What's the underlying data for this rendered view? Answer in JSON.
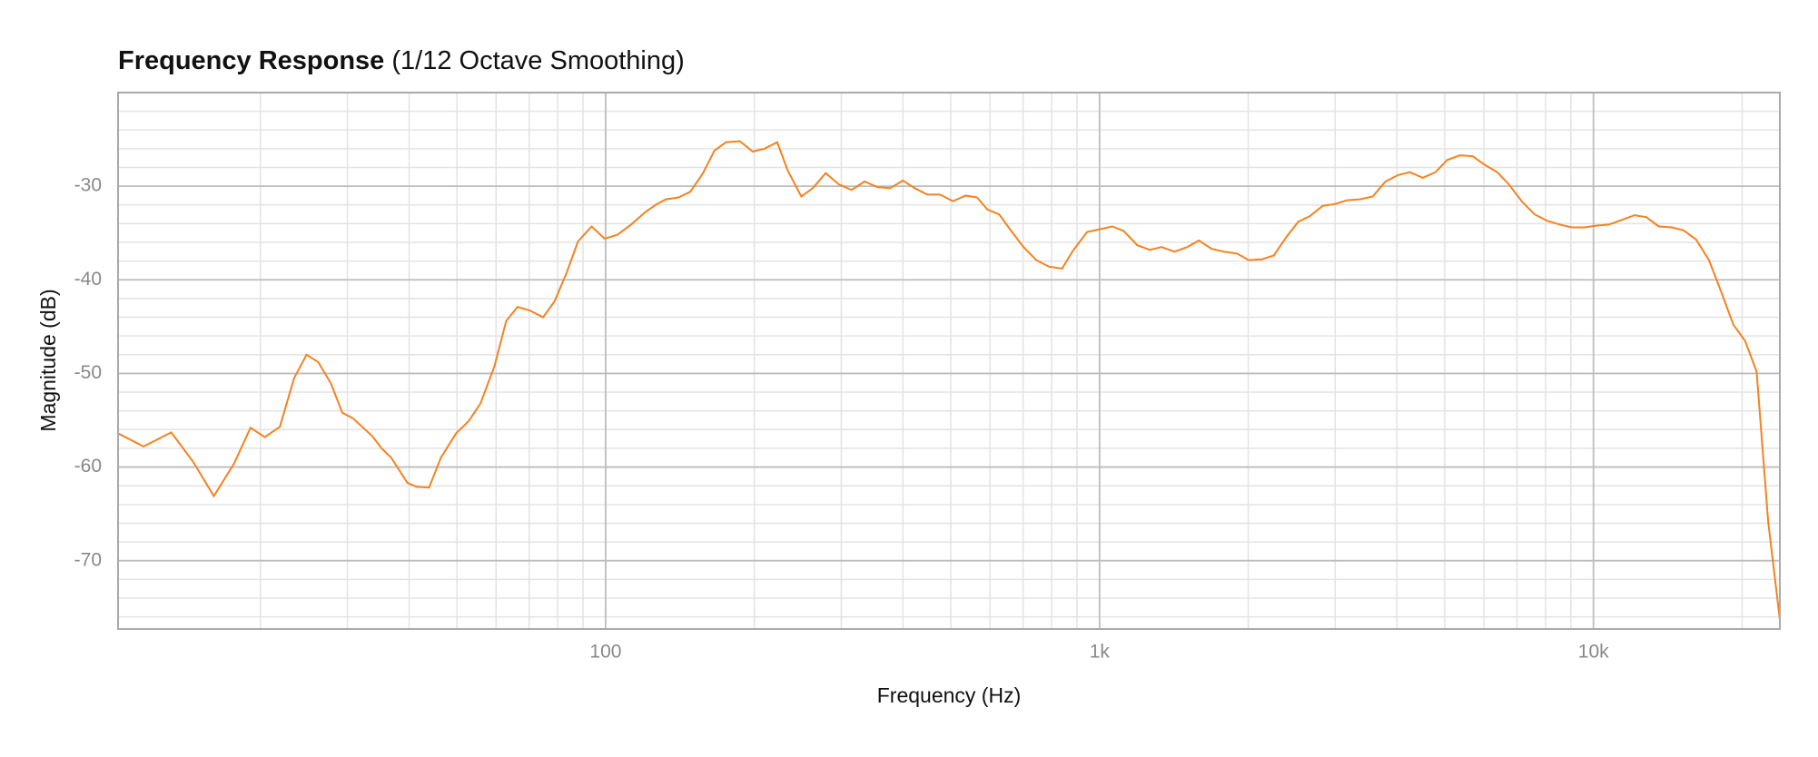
{
  "chart_data": {
    "type": "line",
    "title": "Frequency Response",
    "subtitle": "(1/12 Octave Smoothing)",
    "x_label": "Frequency (Hz)",
    "y_label": "Magnitude (dB)",
    "x_scale": "log",
    "grid": true,
    "xlim": [
      10.3,
      23845
    ],
    "ylim": [
      -77.3,
      -20
    ],
    "xticks": [
      100,
      {
        "value": 1000,
        "label": "1k"
      },
      {
        "value": 10000,
        "label": "10k"
      }
    ],
    "minor_xticks": [
      20,
      30,
      40,
      50,
      60,
      70,
      80,
      90,
      200,
      300,
      400,
      500,
      600,
      700,
      800,
      900,
      2000,
      3000,
      4000,
      5000,
      6000,
      7000,
      8000,
      9000,
      20000
    ],
    "yticks": [
      -30,
      -40,
      -50,
      -60,
      -70
    ],
    "minor_yticks": [
      -22,
      -24,
      -26,
      -28,
      -32,
      -34,
      -36,
      -38,
      -42,
      -44,
      -46,
      -48,
      -52,
      -54,
      -56,
      -58,
      -62,
      -64,
      -66,
      -68,
      -72,
      -74,
      -76
    ],
    "x": [
      10.3,
      11.6,
      13.2,
      14.6,
      16.1,
      17.7,
      19.1,
      20.4,
      21.9,
      23.4,
      24.8,
      26.2,
      27.8,
      29.3,
      30.8,
      33.7,
      35.2,
      36.8,
      39.7,
      41.4,
      43.9,
      46.4,
      49.8,
      52.8,
      55.8,
      59.5,
      62.9,
      66.3,
      70.4,
      74.7,
      78.8,
      83.3,
      87.9,
      93.7,
      99.5,
      105.6,
      112.6,
      120.1,
      126.2,
      132.4,
      140.5,
      148.4,
      157.5,
      166.1,
      175.3,
      187,
      198.5,
      209.6,
      222.5,
      233.6,
      249,
      262.8,
      279,
      296.4,
      314.6,
      334.3,
      354.9,
      376.8,
      400,
      422,
      448,
      475.5,
      504.9,
      536,
      565,
      593,
      626,
      660.8,
      701.6,
      744.6,
      790.6,
      839.4,
      885.9,
      943.2,
      1000,
      1061.5,
      1120,
      1192,
      1265,
      1335,
      1417,
      1505,
      1589,
      1686,
      1790,
      1900,
      2004,
      2134,
      2253,
      2391,
      2525,
      2665,
      2829,
      3003,
      3170,
      3365,
      3573,
      3792,
      4025,
      4250,
      4512,
      4789,
      5055,
      5367,
      5697,
      6014,
      6384,
      6739,
      7154,
      7595,
      8062,
      8558,
      9034,
      9590,
      10180,
      10746,
      11407,
      12108,
      12782,
      13568,
      14403,
      15205,
      16140,
      17133,
      18087,
      19199,
      20268,
      21396,
      22587,
      23845
    ],
    "series": [
      {
        "color": "#f58220",
        "values": [
          -56.4,
          -57.8,
          -56.3,
          -59.4,
          -63.1,
          -59.6,
          -55.8,
          -56.8,
          -55.7,
          -50.5,
          -48.0,
          -48.8,
          -51.1,
          -54.2,
          -54.8,
          -56.7,
          -58.0,
          -59.0,
          -61.7,
          -62.1,
          -62.2,
          -59.0,
          -56.4,
          -55.1,
          -53.2,
          -49.3,
          -44.4,
          -42.9,
          -43.3,
          -44.0,
          -42.3,
          -39.3,
          -35.9,
          -34.3,
          -35.6,
          -35.2,
          -34.1,
          -32.8,
          -32.0,
          -31.4,
          -31.2,
          -30.6,
          -28.6,
          -26.2,
          -25.3,
          -25.2,
          -26.3,
          -26.0,
          -25.3,
          -28.3,
          -31.1,
          -30.2,
          -28.6,
          -29.8,
          -30.4,
          -29.5,
          -30.1,
          -30.2,
          -29.4,
          -30.2,
          -30.9,
          -30.9,
          -31.6,
          -31.0,
          -31.2,
          -32.5,
          -33.0,
          -34.7,
          -36.5,
          -37.9,
          -38.6,
          -38.8,
          -36.8,
          -34.9,
          -34.6,
          -34.3,
          -34.8,
          -36.3,
          -36.8,
          -36.5,
          -37.0,
          -36.5,
          -35.8,
          -36.7,
          -37.0,
          -37.2,
          -37.9,
          -37.8,
          -37.4,
          -35.4,
          -33.8,
          -33.2,
          -32.1,
          -31.9,
          -31.5,
          -31.4,
          -31.1,
          -29.5,
          -28.8,
          -28.5,
          -29.1,
          -28.5,
          -27.2,
          -26.7,
          -26.8,
          -27.7,
          -28.5,
          -29.8,
          -31.6,
          -33.0,
          -33.7,
          -34.1,
          -34.4,
          -34.4,
          -34.2,
          -34.1,
          -33.6,
          -33.1,
          -33.3,
          -34.3,
          -34.4,
          -34.7,
          -35.7,
          -37.9,
          -41.1,
          -44.8,
          -46.5,
          -49.8,
          -65.9,
          -76.3
        ]
      }
    ]
  }
}
